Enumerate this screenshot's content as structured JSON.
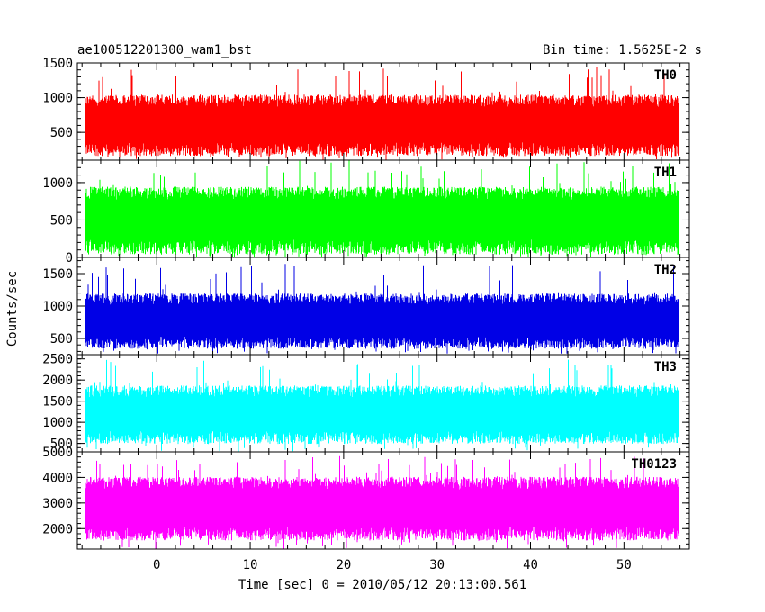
{
  "chart_data": {
    "type": "line",
    "title": "ae100512201300_wam1_bst",
    "subtitle": "Bin time: 1.5625E-2 s",
    "xlabel": "Time [sec] 0 = 2010/05/12 20:13:00.561",
    "ylabel": "Counts/sec",
    "xlim": [
      -8.5,
      57
    ],
    "xticks": [
      0,
      10,
      20,
      30,
      40,
      50
    ],
    "grid": false,
    "bin_time_s": 0.015625,
    "panels": [
      {
        "name": "TH0",
        "color": "#ff0000",
        "ylim": [
          100,
          1500
        ],
        "yticks": [
          500,
          1000,
          1500
        ],
        "typical_low": 200,
        "typical_high": 1000,
        "min": 100,
        "max": 1500
      },
      {
        "name": "TH1",
        "color": "#00ff00",
        "ylim": [
          0,
          1300
        ],
        "yticks": [
          0,
          500,
          1000
        ],
        "typical_low": 80,
        "typical_high": 900,
        "min": 0,
        "max": 1300
      },
      {
        "name": "TH2",
        "color": "#0000e6",
        "ylim": [
          250,
          1750
        ],
        "yticks": [
          500,
          1000,
          1500
        ],
        "typical_low": 380,
        "typical_high": 1150,
        "min": 260,
        "max": 1700
      },
      {
        "name": "TH3",
        "color": "#00ffff",
        "ylim": [
          300,
          2600
        ],
        "yticks": [
          500,
          1000,
          1500,
          2000,
          2500
        ],
        "typical_low": 550,
        "typical_high": 1800,
        "min": 300,
        "max": 2500
      },
      {
        "name": "TH0123",
        "color": "#ff00ff",
        "ylim": [
          1200,
          5000
        ],
        "yticks": [
          2000,
          3000,
          4000,
          5000
        ],
        "typical_low": 1650,
        "typical_high": 3900,
        "min": 1200,
        "max": 4900
      }
    ]
  }
}
